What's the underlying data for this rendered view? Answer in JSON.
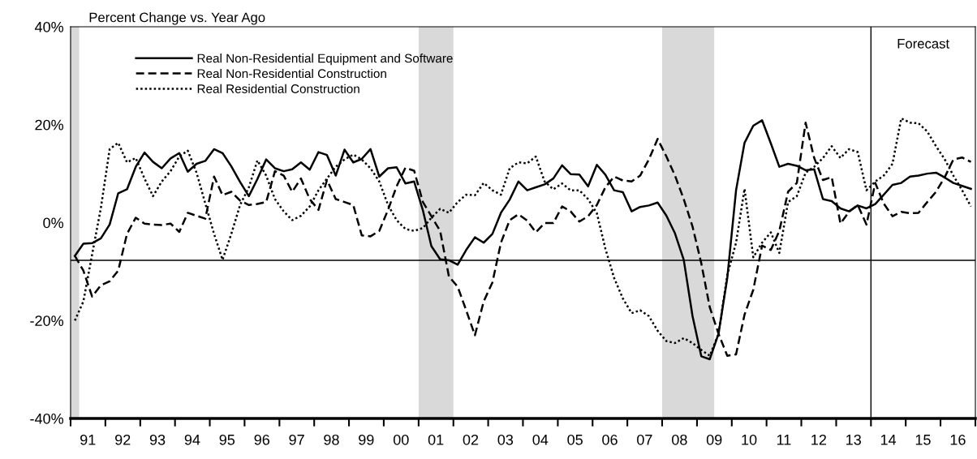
{
  "chart_data": {
    "type": "line",
    "title": "Percent Change vs. Year Ago",
    "x": [
      "1991-02-15",
      "1991-05-15",
      "1991-08-15",
      "1991-11-15",
      "1992-02-15",
      "1992-05-15",
      "1992-08-15",
      "1992-11-15",
      "1993-02-15",
      "1993-05-15",
      "1993-08-15",
      "1993-11-15",
      "1994-02-15",
      "1994-05-15",
      "1994-08-15",
      "1994-11-15",
      "1995-02-15",
      "1995-05-15",
      "1995-08-15",
      "1995-11-15",
      "1996-02-15",
      "1996-05-15",
      "1996-08-15",
      "1996-11-15",
      "1997-02-15",
      "1997-05-15",
      "1997-08-15",
      "1997-11-15",
      "1998-02-15",
      "1998-05-15",
      "1998-08-15",
      "1998-11-15",
      "1999-02-15",
      "1999-05-15",
      "1999-08-15",
      "1999-11-15",
      "2000-02-15",
      "2000-05-15",
      "2000-08-15",
      "2000-11-15",
      "2001-02-15",
      "2001-05-15",
      "2001-08-15",
      "2001-11-15",
      "2002-02-15",
      "2002-05-15",
      "2002-08-15",
      "2002-11-15",
      "2003-02-15",
      "2003-05-15",
      "2003-08-15",
      "2003-11-15",
      "2004-02-15",
      "2004-05-15",
      "2004-08-15",
      "2004-11-15",
      "2005-02-15",
      "2005-05-15",
      "2005-08-15",
      "2005-11-15",
      "2006-02-15",
      "2006-05-15",
      "2006-08-15",
      "2006-11-15",
      "2007-02-15",
      "2007-05-15",
      "2007-08-15",
      "2007-11-15",
      "2008-02-15",
      "2008-05-15",
      "2008-08-15",
      "2008-11-15",
      "2009-02-15",
      "2009-05-15",
      "2009-08-15",
      "2009-11-15",
      "2010-02-15",
      "2010-05-15",
      "2010-08-15",
      "2010-11-15",
      "2011-02-15",
      "2011-05-15",
      "2011-08-15",
      "2011-11-15",
      "2012-02-15",
      "2012-05-15",
      "2012-08-15",
      "2012-11-15",
      "2013-02-15",
      "2013-05-15",
      "2013-08-15",
      "2013-11-15",
      "2014-02-15",
      "2014-05-15",
      "2014-08-15",
      "2014-11-15",
      "2015-02-15",
      "2015-05-15",
      "2015-08-15",
      "2015-11-15",
      "2016-02-15",
      "2016-05-15",
      "2016-08-15",
      "2016-11-15"
    ],
    "series": [
      {
        "name": "Real Non-Residential Equipment and Software",
        "color": "#000000",
        "line_style": "solid",
        "values": [
          -6.8,
          -4.3,
          -4.2,
          -3.2,
          -0.4,
          6.0,
          6.8,
          11.4,
          14.3,
          12.4,
          11.1,
          13.1,
          14.2,
          10.4,
          12.0,
          12.6,
          15.0,
          14.2,
          11.5,
          8.3,
          5.4,
          8.9,
          12.9,
          11.1,
          10.5,
          10.9,
          12.3,
          10.8,
          14.4,
          13.8,
          9.6,
          14.9,
          12.3,
          13.0,
          15.0,
          9.4,
          11.1,
          11.3,
          8.0,
          8.4,
          2.5,
          -4.8,
          -7.5,
          -7.7,
          -8.6,
          -5.6,
          -3.0,
          -4.1,
          -2.3,
          2.0,
          4.7,
          8.4,
          6.6,
          7.2,
          7.8,
          9.0,
          11.7,
          9.9,
          9.8,
          7.4,
          11.8,
          9.8,
          6.6,
          6.2,
          2.3,
          3.2,
          3.5,
          4.1,
          1.4,
          -2.2,
          -7.6,
          -19.1,
          -27.3,
          -27.9,
          -22.7,
          -11.3,
          6.6,
          16.3,
          19.8,
          20.9,
          16.2,
          11.4,
          12.0,
          11.6,
          10.7,
          10.9,
          4.8,
          4.4,
          2.9,
          2.3,
          3.5,
          2.9,
          3.8,
          5.7,
          7.7,
          8.1,
          9.4,
          9.6,
          10.0,
          10.2,
          9.2,
          8.1,
          7.5,
          6.9
        ]
      },
      {
        "name": "Real Non-Residential Construction",
        "color": "#000000",
        "line_style": "dashed",
        "values": [
          -6.8,
          -9.8,
          -15.1,
          -12.8,
          -12.0,
          -9.8,
          -2.3,
          1.0,
          -0.2,
          -0.4,
          -0.5,
          -0.2,
          -1.9,
          2.0,
          1.4,
          0.8,
          9.4,
          5.6,
          6.3,
          4.5,
          3.6,
          3.8,
          4.2,
          10.5,
          9.6,
          6.3,
          9.0,
          4.8,
          2.6,
          8.7,
          4.8,
          4.2,
          3.6,
          -2.6,
          -2.8,
          -1.7,
          2.6,
          7.4,
          11.2,
          10.6,
          4.2,
          1.3,
          -1.7,
          -11.0,
          -13.1,
          -17.9,
          -23.0,
          -16.1,
          -12.2,
          -4.1,
          0.5,
          1.7,
          0.4,
          -2.0,
          -0.1,
          -0.1,
          3.3,
          2.3,
          0.2,
          1.3,
          3.6,
          7.2,
          9.4,
          8.6,
          8.4,
          9.6,
          12.9,
          17.1,
          13.5,
          9.6,
          4.8,
          -0.8,
          -8.3,
          -17.3,
          -22.7,
          -27.2,
          -26.9,
          -18.8,
          -13.7,
          -4.7,
          -5.6,
          -1.7,
          6.3,
          8.1,
          20.4,
          13.2,
          8.7,
          9.3,
          -0.2,
          2.2,
          3.6,
          -0.4,
          8.1,
          3.9,
          1.3,
          2.2,
          1.9,
          2.0,
          4.2,
          6.3,
          9.3,
          12.9,
          13.3,
          12.4
        ]
      },
      {
        "name": "Real Residential Construction",
        "color": "#000000",
        "line_style": "dotted",
        "values": [
          -20.0,
          -16.1,
          -6.5,
          3.0,
          15.0,
          16.3,
          12.3,
          13.2,
          9.0,
          5.4,
          8.4,
          10.5,
          13.5,
          14.7,
          10.2,
          3.9,
          -2.3,
          -7.6,
          -2.3,
          3.6,
          7.2,
          12.7,
          9.6,
          4.8,
          2.3,
          0.5,
          1.4,
          3.3,
          6.6,
          9.0,
          11.4,
          12.9,
          13.9,
          12.9,
          11.1,
          8.4,
          3.6,
          0.5,
          -1.3,
          -1.7,
          -1.1,
          1.0,
          2.8,
          2.0,
          4.2,
          5.7,
          5.6,
          8.1,
          6.6,
          5.7,
          11.1,
          12.3,
          12.1,
          13.5,
          8.4,
          6.8,
          8.0,
          6.6,
          6.6,
          4.8,
          1.9,
          -5.3,
          -11.3,
          -15.5,
          -18.5,
          -17.9,
          -19.1,
          -22.1,
          -24.2,
          -24.6,
          -23.6,
          -24.6,
          -26.0,
          -27.2,
          -22.7,
          -10.7,
          -4.1,
          6.9,
          -7.1,
          -4.1,
          -2.0,
          -6.2,
          4.2,
          5.4,
          10.2,
          11.4,
          13.2,
          15.6,
          13.2,
          15.0,
          14.4,
          6.6,
          8.4,
          9.6,
          12.0,
          21.3,
          20.4,
          20.3,
          18.6,
          15.6,
          12.9,
          9.6,
          6.6,
          3.3
        ]
      }
    ],
    "xlim": [
      "1991-01-01",
      "2017-01-01"
    ],
    "xticks": [
      {
        "value": "1991-01-01",
        "label": null
      },
      {
        "value": "1992-01-01",
        "label": null
      },
      {
        "value": "1993-01-01",
        "label": null
      },
      {
        "value": "1994-01-01",
        "label": null
      },
      {
        "value": "1995-01-01",
        "label": null
      },
      {
        "value": "1996-01-01",
        "label": null
      },
      {
        "value": "1997-01-01",
        "label": null
      },
      {
        "value": "1998-01-01",
        "label": null
      },
      {
        "value": "1999-01-01",
        "label": null
      },
      {
        "value": "2000-01-01",
        "label": null
      },
      {
        "value": "2001-01-01",
        "label": null
      },
      {
        "value": "2002-01-01",
        "label": null
      },
      {
        "value": "2003-01-01",
        "label": null
      },
      {
        "value": "2004-01-01",
        "label": null
      },
      {
        "value": "2005-01-01",
        "label": null
      },
      {
        "value": "2006-01-01",
        "label": null
      },
      {
        "value": "2007-01-01",
        "label": null
      },
      {
        "value": "2008-01-01",
        "label": null
      },
      {
        "value": "2009-01-01",
        "label": null
      },
      {
        "value": "2010-01-01",
        "label": null
      },
      {
        "value": "2011-01-01",
        "label": null
      },
      {
        "value": "2012-01-01",
        "label": null
      },
      {
        "value": "2013-01-01",
        "label": null
      },
      {
        "value": "2014-01-01",
        "label": null
      },
      {
        "value": "2015-01-01",
        "label": null
      },
      {
        "value": "2016-01-01",
        "label": null
      },
      {
        "value": "2017-01-01",
        "label": null
      },
      {
        "value": "1991-07-01",
        "label": "91"
      },
      {
        "value": "1992-07-01",
        "label": "92"
      },
      {
        "value": "1993-07-01",
        "label": "93"
      },
      {
        "value": "1994-07-01",
        "label": "94"
      },
      {
        "value": "1995-07-01",
        "label": "95"
      },
      {
        "value": "1996-07-01",
        "label": "96"
      },
      {
        "value": "1997-07-01",
        "label": "97"
      },
      {
        "value": "1998-07-01",
        "label": "98"
      },
      {
        "value": "1999-07-01",
        "label": "99"
      },
      {
        "value": "2000-07-01",
        "label": "00"
      },
      {
        "value": "2001-07-01",
        "label": "01"
      },
      {
        "value": "2002-07-01",
        "label": "02"
      },
      {
        "value": "2003-07-01",
        "label": "03"
      },
      {
        "value": "2004-07-01",
        "label": "04"
      },
      {
        "value": "2005-07-01",
        "label": "05"
      },
      {
        "value": "2006-07-01",
        "label": "06"
      },
      {
        "value": "2007-07-01",
        "label": "07"
      },
      {
        "value": "2008-07-01",
        "label": "08"
      },
      {
        "value": "2009-07-01",
        "label": "09"
      },
      {
        "value": "2010-07-01",
        "label": "10"
      },
      {
        "value": "2011-07-01",
        "label": "11"
      },
      {
        "value": "2012-07-01",
        "label": "12"
      },
      {
        "value": "2013-07-01",
        "label": "13"
      },
      {
        "value": "2014-07-01",
        "label": "14"
      },
      {
        "value": "2015-07-01",
        "label": "15"
      },
      {
        "value": "2016-07-01",
        "label": "16"
      }
    ],
    "ylim": [
      -40,
      40
    ],
    "yticks": [
      {
        "value": -40,
        "label": "-40%"
      },
      {
        "value": -20,
        "label": "-20%"
      },
      {
        "value": 0,
        "label": "0%"
      },
      {
        "value": 20,
        "label": "20%"
      },
      {
        "value": 40,
        "label": "40%"
      }
    ],
    "ref_lines": [
      {
        "axis": "y",
        "value": -7.7,
        "color": "#000000"
      },
      {
        "axis": "x",
        "value": "2014-01-01",
        "label": "Forecast",
        "color": "#000000"
      }
    ],
    "bands": [
      {
        "axis": "x",
        "from": "1991-01-01",
        "to": "1991-04-01",
        "color": "#d9d9d9"
      },
      {
        "axis": "x",
        "from": "2001-01-01",
        "to": "2002-01-01",
        "color": "#d9d9d9"
      },
      {
        "axis": "x",
        "from": "2008-01-01",
        "to": "2009-07-01",
        "color": "#d9d9d9"
      }
    ],
    "legend": "top left"
  }
}
